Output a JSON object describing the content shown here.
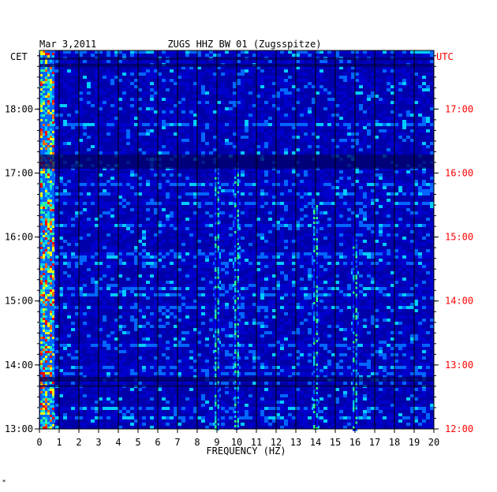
{
  "header": {
    "date": "Mar 3,2011",
    "station": "ZUGS HHZ BW 01 (Zugsspitze)"
  },
  "left_zone": "CET",
  "right_zone": "UTC",
  "footer_mark": "*",
  "colors": {
    "background": "#0000cc",
    "right_axis_text": "#ff0000",
    "grid": "#000000",
    "colormap": [
      "#0000aa",
      "#0000ff",
      "#0066ff",
      "#00ccff",
      "#33ff99",
      "#ffff00",
      "#ff6600",
      "#ff0000"
    ]
  },
  "chart_data": {
    "type": "heatmap",
    "title": "ZUGS HHZ BW 01 (Zugsspitze)",
    "date": "Mar 3,2011",
    "xlabel": "FREQUENCY (HZ)",
    "x_ticks": [
      "0",
      "1",
      "2",
      "3",
      "4",
      "5",
      "6",
      "7",
      "8",
      "9",
      "10",
      "11",
      "12",
      "13",
      "14",
      "15",
      "16",
      "17",
      "18",
      "19",
      "20"
    ],
    "xlim": [
      0,
      20
    ],
    "left_axis_label": "CET",
    "left_ticks": [
      "18:00",
      "17:00",
      "16:00",
      "15:00",
      "14:00",
      "13:00"
    ],
    "right_axis_label": "UTC",
    "right_ticks": [
      "17:00",
      "16:00",
      "15:00",
      "14:00",
      "13:00",
      "12:00"
    ],
    "time_range_cet": [
      "13:00",
      "18:55"
    ],
    "spectral_features": [
      {
        "freq_hz": 0.4,
        "intensity": "high",
        "span_cet": [
          "13:00",
          "18:55"
        ]
      },
      {
        "freq_hz": 9.0,
        "intensity": "medium",
        "span_cet": [
          "13:00",
          "17:05"
        ]
      },
      {
        "freq_hz": 10.0,
        "intensity": "medium",
        "span_cet": [
          "13:00",
          "17:10"
        ]
      },
      {
        "freq_hz": 14.0,
        "intensity": "medium",
        "span_cet": [
          "13:00",
          "16:30"
        ]
      },
      {
        "freq_hz": 16.0,
        "intensity": "medium",
        "span_cet": [
          "13:00",
          "16:00"
        ]
      }
    ]
  }
}
